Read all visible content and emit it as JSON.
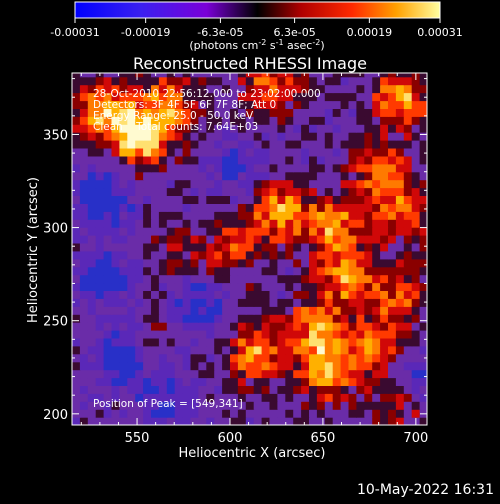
{
  "colorbar": {
    "tick_labels": [
      "-0.00031",
      "-0.00019",
      "-6.3e-05",
      "6.3e-05",
      "0.00019",
      "0.00031"
    ],
    "tick_values": [
      -0.00031,
      -0.00019,
      -6.3e-05,
      6.3e-05,
      0.00019,
      0.00031
    ],
    "range": [
      -0.00031,
      0.00031
    ],
    "unit_main": "(photons cm",
    "unit_sup1": "-2",
    "unit_mid": " s",
    "unit_sup2": "-1",
    "unit_mid2": " asec",
    "unit_sup3": "-2",
    "unit_end": ")"
  },
  "chart_data": {
    "type": "heatmap",
    "title": "Reconstructed RHESSI Image",
    "xlabel": "Heliocentric X (arcsec)",
    "ylabel": "Heliocentric Y (arcsec)",
    "xlim": [
      515,
      706
    ],
    "ylim": [
      194,
      383
    ],
    "x_ticks": [
      550,
      600,
      650,
      700
    ],
    "y_ticks": [
      200,
      250,
      300,
      350
    ],
    "annotations": [
      "28-Oct-2010 22:56:12.000 to 23:02:00.000",
      "Detectors: 3F 4F 5F 6F 7F 8F; Att 0",
      "Energy Range: 25.0 - 50.0 keV",
      "Clean    Total counts: 7.64E+03"
    ],
    "peak_label": "Position of Peak = [549,341]",
    "peak": [
      549,
      341
    ],
    "hotspots": [
      {
        "x": 549,
        "y": 347,
        "v": 1.0
      },
      {
        "x": 530,
        "y": 362,
        "v": 0.75
      },
      {
        "x": 565,
        "y": 365,
        "v": 0.65
      },
      {
        "x": 620,
        "y": 375,
        "v": 0.6
      },
      {
        "x": 690,
        "y": 368,
        "v": 0.75
      },
      {
        "x": 680,
        "y": 328,
        "v": 0.65
      },
      {
        "x": 625,
        "y": 307,
        "v": 0.75
      },
      {
        "x": 655,
        "y": 300,
        "v": 0.7
      },
      {
        "x": 690,
        "y": 305,
        "v": 0.5
      },
      {
        "x": 600,
        "y": 287,
        "v": 0.5
      },
      {
        "x": 660,
        "y": 272,
        "v": 0.7
      },
      {
        "x": 690,
        "y": 262,
        "v": 0.55
      },
      {
        "x": 645,
        "y": 245,
        "v": 0.65
      },
      {
        "x": 612,
        "y": 232,
        "v": 0.75
      },
      {
        "x": 650,
        "y": 222,
        "v": 0.8
      },
      {
        "x": 675,
        "y": 235,
        "v": 0.6
      },
      {
        "x": 690,
        "y": 205,
        "v": 0.55
      },
      {
        "x": 555,
        "y": 240,
        "v": 0.3
      },
      {
        "x": 570,
        "y": 285,
        "v": 0.3
      }
    ],
    "coldspots": [
      {
        "x": 530,
        "y": 315,
        "v": -0.7
      },
      {
        "x": 540,
        "y": 230,
        "v": -0.75
      },
      {
        "x": 580,
        "y": 255,
        "v": -0.55
      },
      {
        "x": 560,
        "y": 205,
        "v": -0.45
      },
      {
        "x": 700,
        "y": 215,
        "v": -0.6
      },
      {
        "x": 600,
        "y": 330,
        "v": -0.35
      },
      {
        "x": 530,
        "y": 270,
        "v": -0.5
      }
    ]
  },
  "footer": {
    "timestamp": "10-May-2022 16:31"
  }
}
